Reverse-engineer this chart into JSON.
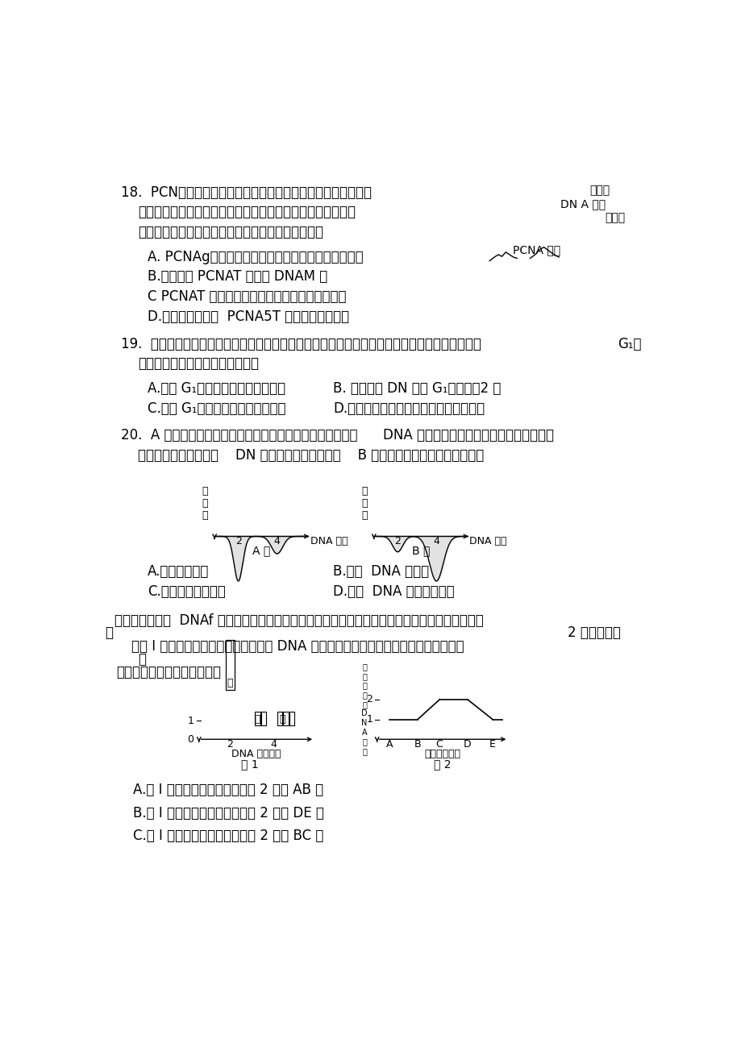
{
  "bg_color": "#ffffff",
  "q18_line1": "18.  PCN幅一类只存在于增殖细胞的阶段性表达的蜗白质，其浓",
  "q18_right1": "度在细",
  "q18_right2": "DN A 含量",
  "q18_right3": "作为评",
  "q18_line2": "胞周期中呈周期性变化（如图），检测其在细胞中的表达，可",
  "q18_line3": "价细胞增殖状态的一个指标。下列推断错误的是（）",
  "q18_A": "A. PCNAg核糖体合成，可能主要在细胞核内发挥作用",
  "q18_pcna_label": "PCNA 谈度",
  "q18_B": "B.曲线表明 PCNAT 能辅助 DNAM 制",
  "q18_C": "C PCNAT 能与染色体的平均分配到细胞两极有关",
  "q18_D": "D.肝癌病人体内的  PCNA5T 能含量较正常人高",
  "q19_line1": "19.  分裂期细胞的细胞质中含有一种促进染色质凝集为染色体的物质。将某种动物的分裂期细胞与",
  "q19_right1": "G₁期",
  "q19_line2": "细胞融合后，可能出现的情况是（",
  "q19_A": "A.来自 G₁期细胞的染色质开始复制",
  "q19_B": "B. 融合细胞 DN 哈是 G₁期细胞的2 倍",
  "q19_C": "C.来自 G₁期细胞的染色质开始凝集",
  "q19_D": "D.融合后两细胞仍按各自的细胞周期运转",
  "q20_line1": "20.  A 图表示某种哺乳动物细胞在正常培养时所测得的细胞中      DNA 含量与细胞数的变化。用某种化合物处",
  "q20_line2": "理培养着的细胞，结果    DN 處量与细胞数的变化如    B 图所示，该化合物所起的作用是",
  "q20_A": "A.促进细胞分裂",
  "q20_B": "B.抑制  DNA 匀复制",
  "q20_C": "C.抑制紺锥体的形成",
  "q20_D": "D.促进  DNA 匀高度螺旋化",
  "q21_line1": "根据每个细胞中  DNAf 对含量不同，将某种连续增殖的动物细胞归为甲、乙、丙三组，每组细胞数",
  "q21_line1b": "如",
  "q21_right1": "2 所示。下列",
  "q21_line2": "卜图 I 所示。根据细胞中每条染色体的 DNA 含量在细胞周期中的变化绘制曲线，如下图",
  "q21_line2b": "）",
  "q21_line3": "有关图的分析，不正确的是（",
  "q21_ansA": "A.图 I 中的乙组细胞全部位于图 2 中的 AB 段",
  "q21_ansB": "B.图 I 中的甲组细胞全部位于图 2 中的 DE 段",
  "q21_ansC": "C.图 I 中的丙组细胞全部位于图 2 中的 BC 段"
}
